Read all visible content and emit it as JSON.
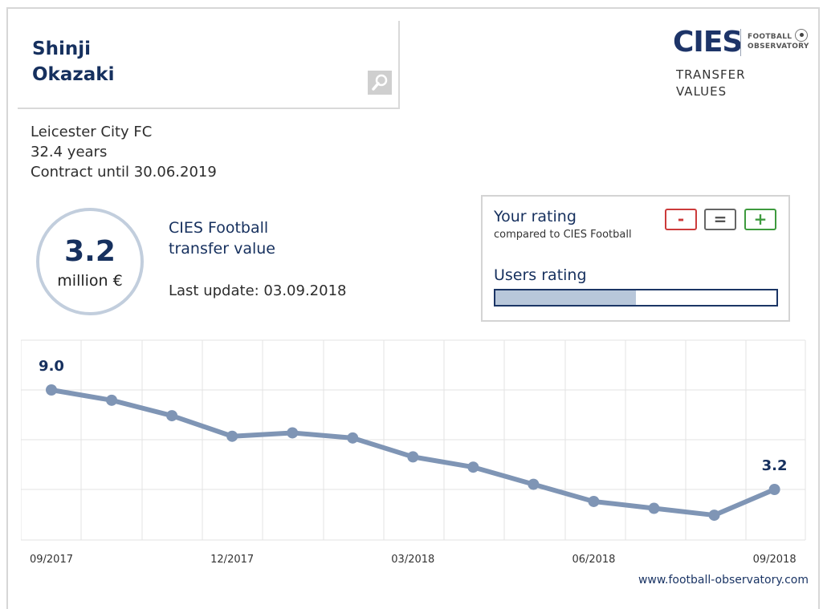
{
  "player": {
    "first_name": "Shinji",
    "last_name": "Okazaki"
  },
  "info": {
    "club": "Leicester City FC",
    "age": "32.4 years",
    "contract": "Contract until 30.06.2019"
  },
  "logo": {
    "text": "CIES",
    "sub1": "FOOTBALL",
    "sub2": "OBSERVATORY"
  },
  "header": {
    "tv_line1": "TRANSFER",
    "tv_line2": "VALUES"
  },
  "value": {
    "amount": "3.2",
    "unit": "million €",
    "title_line1": "CIES Football",
    "title_line2": "transfer value",
    "last_update": "Last update: 03.09.2018"
  },
  "rating": {
    "title": "Your rating",
    "subtitle": "compared to CIES Football",
    "minus": "-",
    "equal": "=",
    "plus": "+",
    "users_title": "Users rating",
    "users_fill": 0.5
  },
  "colors": {
    "navy": "#16305e",
    "line": "#7f95b5",
    "minus": "#cc3b3b",
    "plus": "#3e9a3e"
  },
  "chart_data": {
    "type": "line",
    "x": [
      "09/2017",
      "10/2017",
      "11/2017",
      "12/2017",
      "01/2018",
      "02/2018",
      "03/2018",
      "04/2018",
      "05/2018",
      "06/2018",
      "07/2018",
      "08/2018",
      "09/2018"
    ],
    "values": [
      9.0,
      8.4,
      7.5,
      6.3,
      6.5,
      6.2,
      5.1,
      4.5,
      3.5,
      2.5,
      2.1,
      1.7,
      3.2
    ],
    "x_tick_labels": [
      "09/2017",
      "12/2017",
      "03/2018",
      "06/2018",
      "09/2018"
    ],
    "point_labels": {
      "first": "9.0",
      "last": "3.2"
    },
    "grid": true
  },
  "footer": {
    "site": "www.football-observatory.com"
  }
}
